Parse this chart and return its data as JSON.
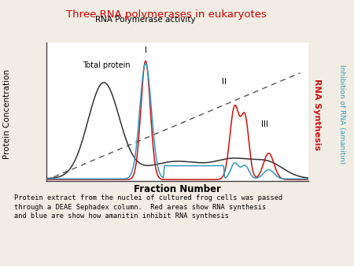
{
  "title": "Three RNA polymerases in eukaryotes",
  "title_color": "#cc0000",
  "xlabel": "Fraction Number",
  "ylabel_left": "Protein Concentration",
  "ylabel_right_red": "RNA Synthesis",
  "ylabel_right_blue": "Inhibition of RNA (amanitin)",
  "caption": "Protein extract from the nuclei of cultured frog cells was passed\nthrough a DEAE Sephadex column.  Red areas show RNA synthesis\nand blue are show how amanitin inhibit RNA synthesis",
  "annotation_rna_pol": "RNA Polymerase activity",
  "annotation_total": "Total protein",
  "annotation_I": "I",
  "annotation_II": "II",
  "annotation_III": "III",
  "bg_color": "#f2ede4",
  "plot_bg_color": "#ffffff",
  "spine_color": "#444444"
}
